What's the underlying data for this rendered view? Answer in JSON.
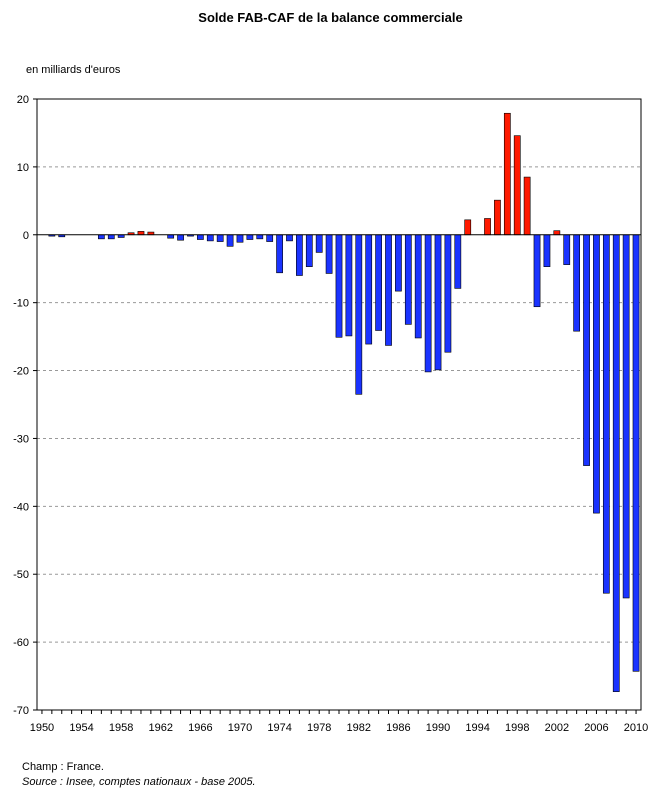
{
  "chart_data": {
    "type": "bar",
    "title": "Solde FAB-CAF de la balance commerciale",
    "ylabel": "en milliards d'euros",
    "xlabel": "",
    "ylim": [
      -70,
      20
    ],
    "yticks": [
      20,
      10,
      0,
      -10,
      -20,
      -30,
      -40,
      -50,
      -60,
      -70
    ],
    "xtick_labels": [
      "1950",
      "1954",
      "1958",
      "1962",
      "1966",
      "1970",
      "1974",
      "1978",
      "1982",
      "1986",
      "1990",
      "1994",
      "1998",
      "2002",
      "2006",
      "2010"
    ],
    "grid": "horizontal dashed",
    "legend": "none",
    "colors": {
      "positive": "#ff1a00",
      "negative": "#1a33ff",
      "edge": "#000000",
      "grid": "#999999"
    },
    "x": [
      1950,
      1951,
      1952,
      1953,
      1954,
      1955,
      1956,
      1957,
      1958,
      1959,
      1960,
      1961,
      1962,
      1963,
      1964,
      1965,
      1966,
      1967,
      1968,
      1969,
      1970,
      1971,
      1972,
      1973,
      1974,
      1975,
      1976,
      1977,
      1978,
      1979,
      1980,
      1981,
      1982,
      1983,
      1984,
      1985,
      1986,
      1987,
      1988,
      1989,
      1990,
      1991,
      1992,
      1993,
      1994,
      1995,
      1996,
      1997,
      1998,
      1999,
      2000,
      2001,
      2002,
      2003,
      2004,
      2005,
      2006,
      2007,
      2008,
      2009,
      2010
    ],
    "values": [
      0,
      -0.2,
      -0.3,
      0,
      0,
      0,
      -0.6,
      -0.6,
      -0.4,
      0.3,
      0.5,
      0.4,
      0,
      -0.5,
      -0.8,
      -0.2,
      -0.7,
      -0.9,
      -1.0,
      -1.7,
      -1.1,
      -0.7,
      -0.6,
      -1.0,
      -5.6,
      -0.9,
      -6.0,
      -4.7,
      -2.6,
      -5.7,
      -15.1,
      -14.9,
      -23.5,
      -16.1,
      -14.1,
      -16.3,
      -8.3,
      -13.2,
      -15.2,
      -20.2,
      -19.9,
      -17.3,
      -7.9,
      2.2,
      0,
      2.4,
      5.1,
      17.9,
      14.6,
      8.5,
      -10.6,
      -4.7,
      0.6,
      -4.4,
      -14.2,
      -34.0,
      -41.0,
      -52.8,
      -67.3,
      -53.5,
      -64.3
    ]
  },
  "footnote": {
    "champ": "Champ : France.",
    "source": "Source : Insee, comptes nationaux - base 2005."
  }
}
